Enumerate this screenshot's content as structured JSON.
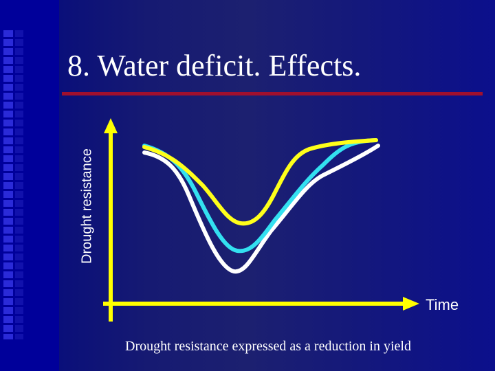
{
  "slide": {
    "title": "8. Water deficit. Effects.",
    "caption": "Drought resistance expressed as a reduction in yield"
  },
  "diagram": {
    "y_axis_label": "Drought resistance",
    "x_axis_label": "Time"
  },
  "colors": {
    "background": "#1a1d72",
    "title_rule": "#a0102e",
    "axis": "#ffff00",
    "curve_white": "#ffffff",
    "curve_cyan": "#33e0f0",
    "curve_yellow": "#ffff1a"
  },
  "curves": [
    {
      "name": "white-curve",
      "color": "#ffffff"
    },
    {
      "name": "cyan-curve",
      "color": "#33e0f0"
    },
    {
      "name": "yellow-curve",
      "color": "#ffff1a"
    }
  ]
}
